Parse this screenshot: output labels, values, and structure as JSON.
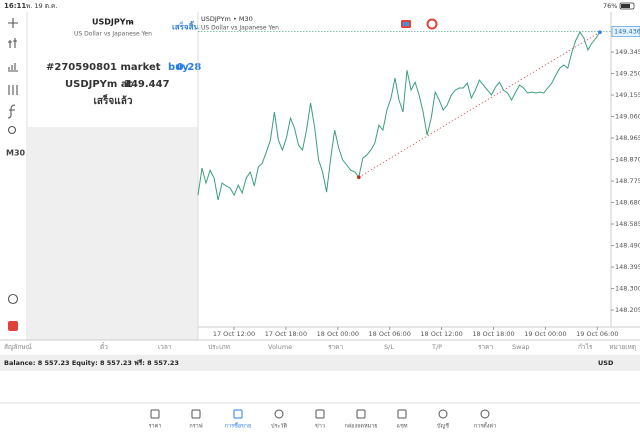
{
  "status_bar": {
    "time": "16:11",
    "date": "พ. 19 ต.ค.",
    "battery": "76%"
  },
  "sidebar": {
    "timeframe": "M30"
  },
  "order_panel": {
    "symbol": "USDJPYm",
    "description": "US Dollar vs Japanese Yen",
    "done_button": "เสร็จสิ้น",
    "order_line": "#270590801 market",
    "side": "buy",
    "volume": "0.28",
    "price_line": "USDJPYm at",
    "price": "149.447",
    "status": "เสร็จแล้ว"
  },
  "chart": {
    "type": "line",
    "title": "USDJPYm • M30",
    "subtitle": "US Dollar vs Japanese Yen",
    "color": "#3aa07a",
    "values": [
      148.713,
      148.832,
      148.766,
      148.823,
      148.788,
      148.691,
      148.766,
      148.753,
      148.744,
      148.713,
      148.757,
      148.722,
      148.788,
      148.815,
      148.753,
      148.837,
      148.854,
      148.903,
      148.956,
      149.08,
      148.956,
      148.912,
      148.965,
      149.053,
      149.009,
      148.934,
      148.912,
      149.0,
      149.12,
      149.013,
      148.868,
      148.815,
      148.726,
      148.876,
      149.0,
      148.921,
      148.868,
      148.846,
      148.823,
      148.815,
      148.792,
      148.876,
      148.89,
      148.912,
      148.943,
      149.022,
      149.0,
      149.089,
      149.142,
      149.23,
      149.133,
      149.08,
      149.265,
      149.177,
      149.212,
      149.155,
      149.08,
      148.978,
      149.053,
      149.168,
      149.133,
      149.089,
      149.111,
      149.155,
      149.177,
      149.186,
      149.186,
      149.208,
      149.142,
      149.177,
      149.221,
      149.199,
      149.177,
      149.155,
      149.19,
      149.212,
      149.177,
      149.164,
      149.133,
      149.168,
      149.199,
      149.186,
      149.164,
      149.168,
      149.164,
      149.168,
      149.164,
      149.186,
      149.208,
      149.243,
      149.274,
      149.288,
      149.274,
      149.345,
      149.398,
      149.433,
      149.407,
      149.354,
      149.385,
      149.407,
      149.433
    ],
    "current_price": 149.436,
    "ylim": [
      148.13,
      149.522
    ],
    "yticks": [
      {
        "value": 149.345,
        "label": "149.345"
      },
      {
        "value": 149.25,
        "label": "149.250"
      },
      {
        "value": 149.155,
        "label": "149.155"
      },
      {
        "value": 149.06,
        "label": "149.060"
      },
      {
        "value": 148.965,
        "label": "148.965"
      },
      {
        "value": 148.87,
        "label": "148.870"
      },
      {
        "value": 148.775,
        "label": "148.775"
      },
      {
        "value": 148.68,
        "label": "148.680"
      },
      {
        "value": 148.585,
        "label": "148.585"
      },
      {
        "value": 148.49,
        "label": "148.490"
      },
      {
        "value": 148.395,
        "label": "148.395"
      },
      {
        "value": 148.3,
        "label": "148.300"
      },
      {
        "value": 148.205,
        "label": "148.205"
      }
    ],
    "xlabels": [
      "17 Oct 12:00",
      "17 Oct 18:00",
      "18 Oct 00:00",
      "18 Oct 06:00",
      "18 Oct 12:00",
      "18 Oct 18:00",
      "19 Oct 00:00",
      "19 Oct 06:00"
    ]
  },
  "table": {
    "columns": [
      "สัญลักษณ์",
      "ตั๋ว",
      "เวลา",
      "ประเภท",
      "Volume",
      "ราคา",
      "S/L",
      "T/P",
      "ราคา",
      "Swap",
      "กำไร",
      "หมายเหตุ"
    ],
    "balance": "Balance: 8 557.23 Equity: 8 557.23 ฟรี: 8 557.23",
    "currency": "USD"
  },
  "tabs": [
    "ราคา",
    "กราฟ",
    "การซื้อขาย",
    "ประวัติ",
    "ข่าว",
    "กล่องจดหมาย",
    "แชท",
    "บัญชี",
    "การตั้งค่า"
  ]
}
